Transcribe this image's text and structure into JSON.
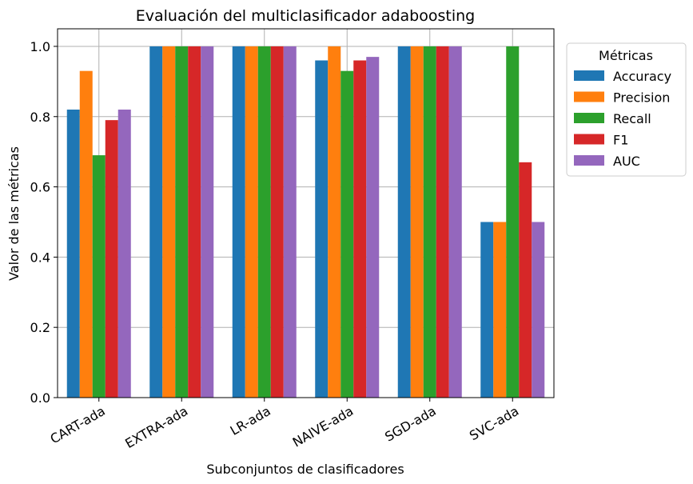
{
  "chart_data": {
    "type": "bar",
    "title": "Evaluación del multiclasificador adaboosting",
    "xlabel": "Subconjuntos de clasificadores",
    "ylabel": "Valor de las métricas",
    "categories": [
      "CART-ada",
      "EXTRA-ada",
      "LR-ada",
      "NAIVE-ada",
      "SGD-ada",
      "SVC-ada"
    ],
    "series": [
      {
        "name": "Accuracy",
        "color": "#1f77b4",
        "values": [
          0.82,
          1.0,
          1.0,
          0.96,
          1.0,
          0.5
        ]
      },
      {
        "name": "Precision",
        "color": "#ff7f0e",
        "values": [
          0.93,
          1.0,
          1.0,
          1.0,
          1.0,
          0.5
        ]
      },
      {
        "name": "Recall",
        "color": "#2ca02c",
        "values": [
          0.69,
          1.0,
          1.0,
          0.93,
          1.0,
          1.0
        ]
      },
      {
        "name": "F1",
        "color": "#d62728",
        "values": [
          0.79,
          1.0,
          1.0,
          0.96,
          1.0,
          0.67
        ]
      },
      {
        "name": "AUC",
        "color": "#9467bd",
        "values": [
          0.82,
          1.0,
          1.0,
          0.97,
          1.0,
          0.5
        ]
      }
    ],
    "ylim": [
      0,
      1.05
    ],
    "yticks": [
      "0.0",
      "0.2",
      "0.4",
      "0.6",
      "0.8",
      "1.0"
    ],
    "grid": true,
    "legend": {
      "title": "Métricas",
      "placement": "outside-right-top"
    }
  }
}
